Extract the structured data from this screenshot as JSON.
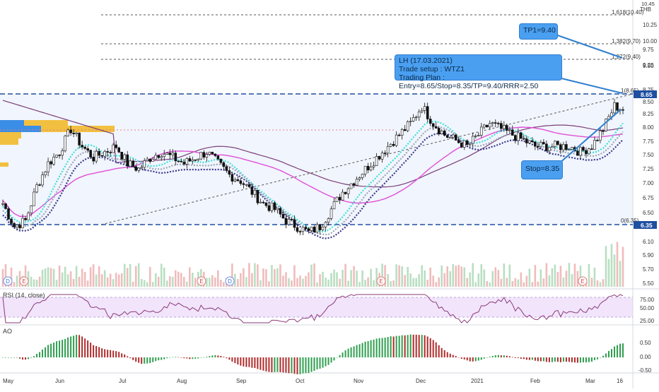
{
  "currency": "THB",
  "currency_top": "10.45",
  "price_panel": {
    "y_ticks": [
      "10.25",
      "10.00",
      "9.75",
      "9.50",
      "9.25",
      "8.75",
      "8.50",
      "8.25",
      "8.00",
      "7.75",
      "7.50",
      "7.25",
      "7.00",
      "6.75",
      "6.50",
      "6.10",
      "5.90",
      "5.70",
      "5.50"
    ],
    "last_price_label": "8.65",
    "low_label": "6.35",
    "fib_labels": [
      "1.618(10.40)",
      "1.382(9.70)",
      "1.272(9.40)",
      "1(8.65)",
      "0(6.35)"
    ],
    "events": [
      "D",
      "E",
      "E",
      "D",
      "E",
      "E"
    ]
  },
  "callouts": {
    "tp": "TP1=9.40",
    "stop": "Stop=8.35",
    "plan_line1": "LH (17.03.2021)",
    "plan_line2": "Trade setup : WTZ1",
    "plan_line3": "Trading Plan : Entry=8.65/Stop=8.35/TP=9.40/RRR=2.50"
  },
  "rsi_panel": {
    "label": "RSI (14, close)",
    "ticks": [
      "75.00",
      "50.00",
      "25.00"
    ]
  },
  "ao_panel": {
    "label": "AO",
    "ticks": [
      "0.50",
      "0.00",
      "-0.50"
    ]
  },
  "x_axis": [
    "May",
    "Jun",
    "Jul",
    "Aug",
    "Sep",
    "Oct",
    "Nov",
    "Dec",
    "2021",
    "Feb",
    "Mar",
    "16"
  ],
  "chart_data": {
    "type": "candlestick",
    "y_range": [
      5.4,
      10.45
    ],
    "levels": {
      "top_resistance": 8.65,
      "bottom_support": 6.35,
      "fib_1_618": 10.4,
      "fib_1_382": 9.7,
      "fib_1_272": 9.4
    },
    "close_path": [
      [
        0,
        6.9
      ],
      [
        4,
        6.5
      ],
      [
        8,
        6.6
      ],
      [
        12,
        7.2
      ],
      [
        16,
        7.6
      ],
      [
        20,
        7.8
      ],
      [
        24,
        8.2
      ],
      [
        28,
        7.9
      ],
      [
        32,
        7.7
      ],
      [
        36,
        7.8
      ],
      [
        40,
        7.9
      ],
      [
        44,
        7.6
      ],
      [
        48,
        7.5
      ],
      [
        52,
        7.7
      ],
      [
        56,
        7.8
      ],
      [
        60,
        7.7
      ],
      [
        64,
        7.6
      ],
      [
        68,
        7.7
      ],
      [
        72,
        7.8
      ],
      [
        76,
        7.6
      ],
      [
        80,
        7.4
      ],
      [
        84,
        7.3
      ],
      [
        88,
        7.1
      ],
      [
        92,
        6.9
      ],
      [
        96,
        6.8
      ],
      [
        100,
        6.6
      ],
      [
        104,
        6.5
      ],
      [
        108,
        6.4
      ],
      [
        112,
        6.5
      ],
      [
        116,
        6.8
      ],
      [
        120,
        7.1
      ],
      [
        124,
        7.3
      ],
      [
        128,
        7.5
      ],
      [
        132,
        7.7
      ],
      [
        136,
        7.9
      ],
      [
        140,
        8.1
      ],
      [
        144,
        8.3
      ],
      [
        148,
        8.6
      ],
      [
        152,
        8.3
      ],
      [
        156,
        8.1
      ],
      [
        160,
        8.0
      ],
      [
        164,
        7.9
      ],
      [
        168,
        8.1
      ],
      [
        172,
        8.3
      ],
      [
        176,
        8.2
      ],
      [
        180,
        8.1
      ],
      [
        184,
        8.0
      ],
      [
        188,
        7.9
      ],
      [
        192,
        7.9
      ],
      [
        196,
        7.9
      ],
      [
        200,
        7.9
      ],
      [
        204,
        7.8
      ],
      [
        208,
        7.9
      ],
      [
        212,
        8.2
      ],
      [
        216,
        8.6
      ],
      [
        219,
        8.55
      ]
    ]
  }
}
